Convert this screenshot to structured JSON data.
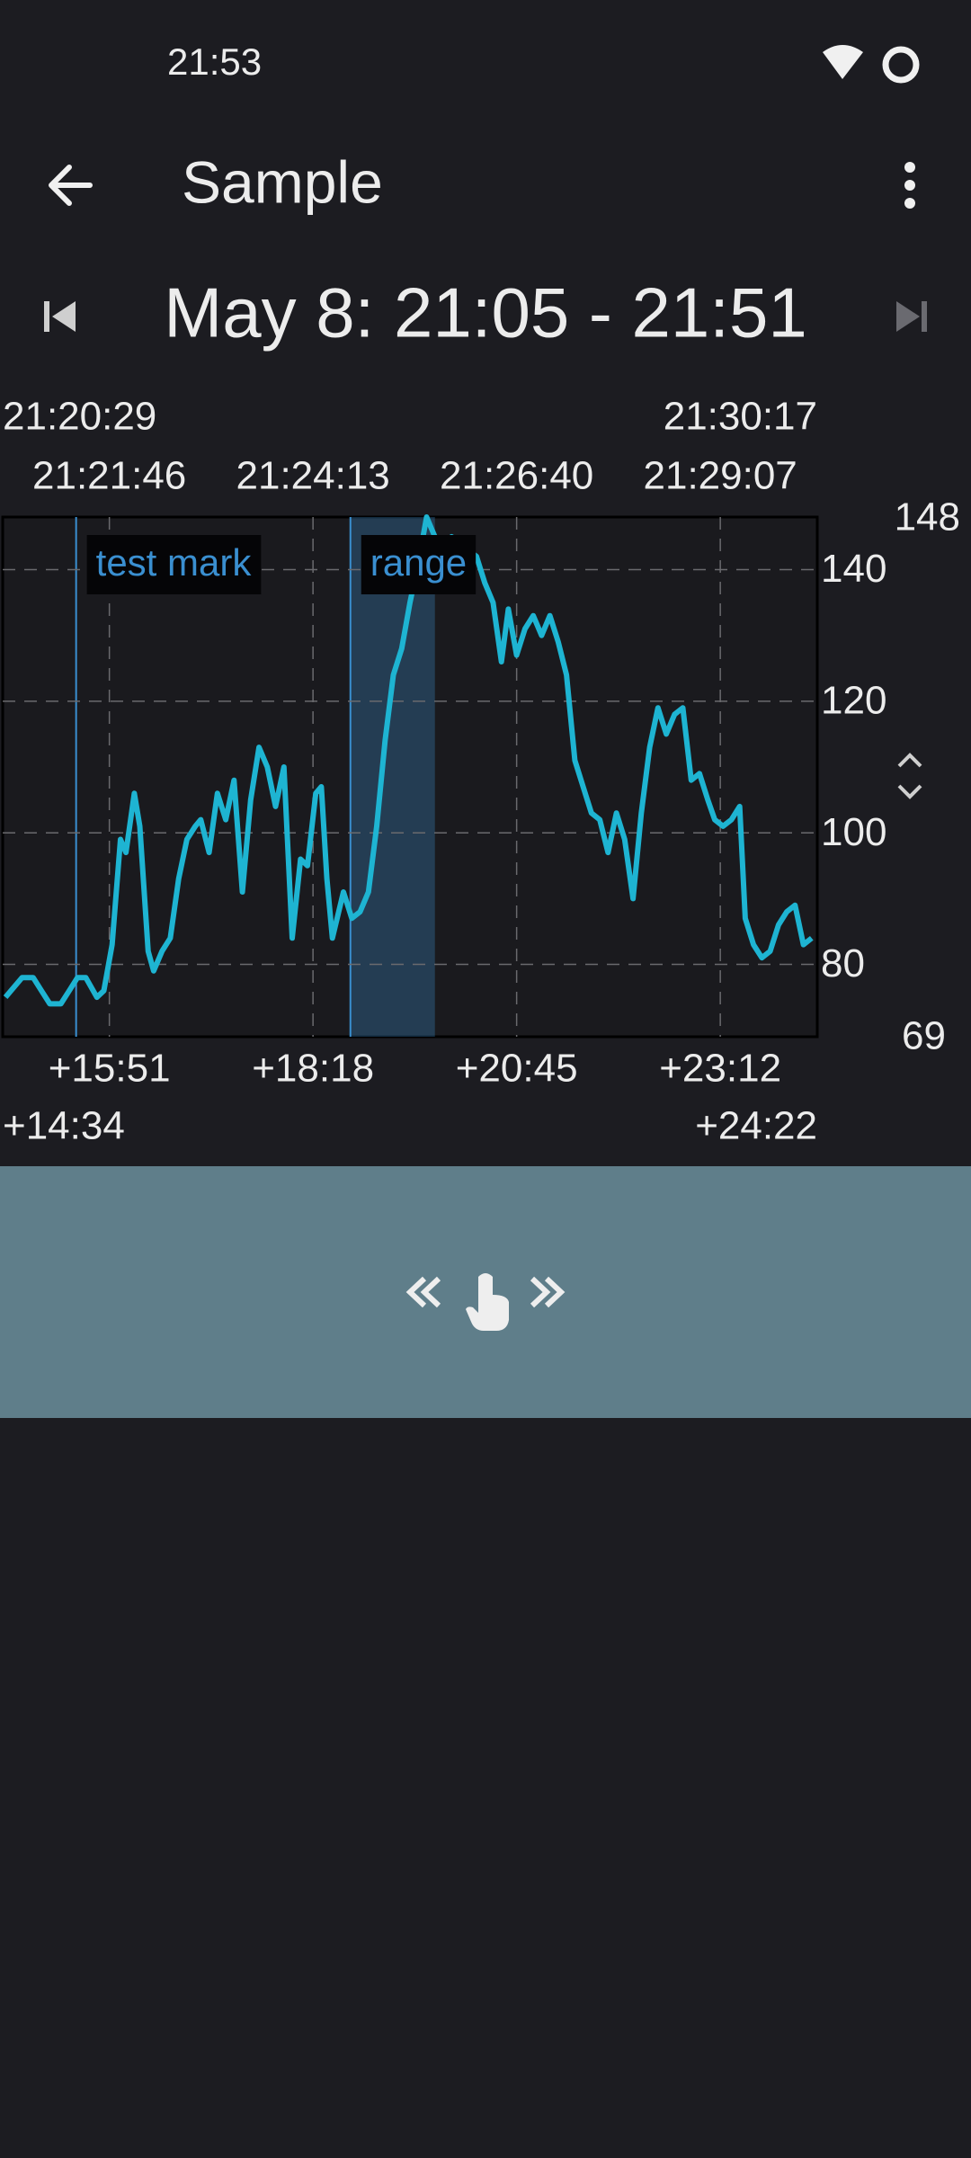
{
  "status_bar": {
    "time": "21:53"
  },
  "app_bar": {
    "title": "Sample"
  },
  "navigation": {
    "title": "May 8: 21:05 - 21:51"
  },
  "chart_data": {
    "type": "line",
    "x": [
      876,
      880,
      888,
      896,
      902,
      908,
      916,
      922,
      928,
      934,
      942,
      947,
      953,
      959,
      963,
      969,
      973,
      979,
      983,
      989,
      995,
      1001,
      1007,
      1013,
      1017,
      1023,
      1029,
      1035,
      1041,
      1047,
      1053,
      1059,
      1065,
      1071,
      1077,
      1083,
      1089,
      1094,
      1100,
      1104,
      1108,
      1112,
      1120,
      1126,
      1132,
      1138,
      1144,
      1150,
      1156,
      1162,
      1168,
      1174,
      1180,
      1186,
      1192,
      1198,
      1204,
      1210,
      1216,
      1222,
      1228,
      1234,
      1239,
      1245,
      1251,
      1257,
      1263,
      1269,
      1275,
      1281,
      1287,
      1293,
      1299,
      1305,
      1311,
      1317,
      1323,
      1329,
      1335,
      1341,
      1347,
      1353,
      1359,
      1365,
      1371,
      1377,
      1383,
      1388,
      1394,
      1400,
      1406,
      1410,
      1416,
      1422,
      1428,
      1434,
      1440,
      1446,
      1452,
      1458
    ],
    "series": [
      {
        "color": "#1eb4d2",
        "values": [
          75,
          76,
          78,
          78,
          76,
          74,
          74,
          76,
          78,
          78,
          75,
          76,
          83,
          99,
          97,
          106,
          101,
          82,
          79,
          82,
          84,
          93,
          99,
          101,
          102,
          97,
          106,
          102,
          108,
          91,
          105,
          113,
          110,
          104,
          110,
          84,
          96,
          95,
          106,
          107,
          93,
          84,
          91,
          87,
          88,
          91,
          101,
          114,
          124,
          128,
          135,
          141,
          148,
          145,
          143,
          145,
          144,
          143,
          142,
          138,
          135,
          126,
          134,
          127,
          131,
          133,
          130,
          133,
          129,
          124,
          111,
          107,
          103,
          102,
          97,
          103,
          99,
          90,
          103,
          113,
          119,
          115,
          118,
          119,
          108,
          109,
          105,
          102,
          101,
          102,
          104,
          87,
          83,
          81,
          82,
          86,
          88,
          89,
          83,
          84
        ]
      }
    ],
    "xlim": [
      874,
      1462
    ],
    "xlim_labels": [
      "+14:34",
      "+24:22"
    ],
    "xticks": [
      {
        "value": 951,
        "label": "+15:51"
      },
      {
        "value": 1098,
        "label": "+18:18"
      },
      {
        "value": 1245,
        "label": "+20:45"
      },
      {
        "value": 1392,
        "label": "+23:12"
      }
    ],
    "x2lim_labels": [
      "21:20:29",
      "21:30:17"
    ],
    "x2ticks": [
      {
        "value": 951,
        "label": "21:21:46"
      },
      {
        "value": 1098,
        "label": "21:24:13"
      },
      {
        "value": 1245,
        "label": "21:26:40"
      },
      {
        "value": 1392,
        "label": "21:29:07"
      }
    ],
    "ylim": [
      69,
      148
    ],
    "yticks": [
      80,
      100,
      120,
      140
    ],
    "grid": true,
    "markers": [
      {
        "label": "test mark",
        "x": 927,
        "color": "#3a8fd0"
      }
    ],
    "ranges": [
      {
        "label": "range",
        "x": [
          1125,
          1186
        ],
        "color": "#3a8fd0"
      }
    ]
  }
}
